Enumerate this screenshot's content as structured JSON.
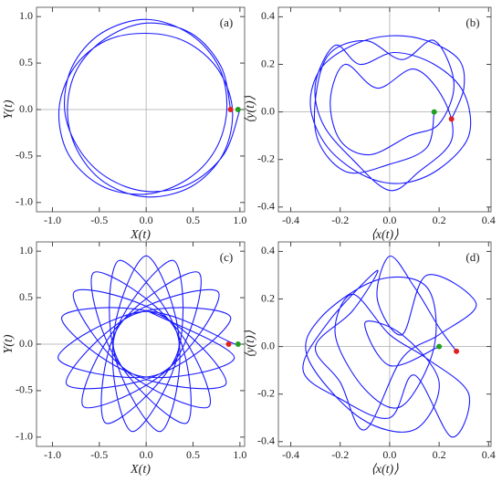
{
  "chart_data": [
    {
      "type": "line",
      "label": "(a)",
      "xlabel": "X(t)",
      "ylabel": "Y(t)",
      "xlim": [
        -1.17,
        1.05
      ],
      "ylim": [
        -1.1,
        1.1
      ],
      "xticks": [
        {
          "value": -1,
          "label": "-1.0"
        },
        -0.5,
        {
          "value": 0,
          "label": "0.0"
        },
        0.5,
        {
          "value": 1,
          "label": "1.0"
        }
      ],
      "yticks": [
        {
          "value": -1,
          "label": "-1.0"
        },
        -0.5,
        {
          "value": 0,
          "label": "0.0"
        },
        0.5,
        {
          "value": 1,
          "label": "1.0"
        }
      ],
      "series": [
        {
          "color": "#1a1aff",
          "style": "line",
          "x": [
            0.9,
            0.8,
            0.48,
            0,
            -0.44,
            -0.74,
            -0.84,
            -0.74,
            -0.45,
            0,
            0.48,
            0.82,
            0.92,
            0.76,
            0.42,
            0,
            -0.43,
            -0.77,
            -0.93,
            -0.83,
            -0.48,
            0,
            0.44,
            0.74,
            0.86,
            0.78,
            0.47,
            0,
            -0.48,
            -0.79,
            -0.87,
            -0.72,
            -0.42,
            0,
            0.46,
            0.83,
            1.0
          ],
          "values": [
            0,
            0.46,
            0.82,
            0.93,
            0.76,
            0.43,
            0,
            -0.43,
            -0.78,
            -0.94,
            -0.83,
            -0.48,
            0,
            0.44,
            0.73,
            0.82,
            0.74,
            0.45,
            0,
            -0.48,
            -0.82,
            -0.91,
            -0.75,
            -0.43,
            0,
            0.45,
            0.81,
            0.97,
            0.82,
            0.46,
            0,
            -0.42,
            -0.73,
            -0.88,
            -0.8,
            -0.48,
            0
          ]
        },
        {
          "color": "#e02020",
          "style": "point",
          "x": [
            0.9
          ],
          "values": [
            0
          ]
        },
        {
          "color": "#20a020",
          "style": "point",
          "x": [
            0.98
          ],
          "values": [
            0
          ]
        }
      ]
    },
    {
      "type": "line",
      "label": "(b)",
      "xlabel": "⟨x(t)⟩",
      "ylabel": "⟨y(t)⟩",
      "xlim": [
        -0.45,
        0.41
      ],
      "ylim": [
        -0.42,
        0.44
      ],
      "xticks": [
        -0.4,
        -0.2,
        {
          "value": 0,
          "label": "0.0"
        },
        0.2,
        0.4
      ],
      "yticks": [
        -0.4,
        -0.2,
        {
          "value": 0,
          "label": "0.0"
        },
        0.2,
        0.4
      ],
      "series": [
        {
          "color": "#1a1aff",
          "style": "line",
          "x": [
            0.25,
            0.3,
            0.28,
            0.15,
            0.0,
            -0.15,
            -0.28,
            -0.32,
            -0.25,
            -0.1,
            0.05,
            0.2,
            0.32,
            0.3,
            0.18,
            0.02,
            -0.12,
            -0.22,
            -0.3,
            -0.27,
            -0.15,
            0.0,
            0.12,
            0.25,
            0.22,
            0.1,
            -0.05,
            -0.18,
            -0.24,
            -0.2,
            -0.08,
            0.08,
            0.2,
            0.26,
            0.18,
            0.05,
            -0.1,
            -0.26,
            -0.3,
            -0.18,
            0.0,
            0.15,
            0.18
          ],
          "values": [
            -0.03,
            0.1,
            0.22,
            0.3,
            0.32,
            0.28,
            0.18,
            0.02,
            -0.15,
            -0.27,
            -0.3,
            -0.24,
            -0.1,
            0.08,
            0.2,
            0.25,
            0.2,
            0.28,
            0.12,
            -0.05,
            -0.2,
            -0.33,
            -0.25,
            -0.12,
            0.05,
            0.18,
            0.1,
            0.2,
            0.05,
            -0.12,
            -0.18,
            -0.1,
            -0.05,
            0.12,
            0.3,
            0.22,
            0.3,
            0.22,
            -0.08,
            -0.25,
            -0.22,
            -0.15,
            0.0
          ]
        },
        {
          "color": "#e02020",
          "style": "point",
          "x": [
            0.25
          ],
          "values": [
            -0.03
          ]
        },
        {
          "color": "#20a020",
          "style": "point",
          "x": [
            0.18
          ],
          "values": [
            0.0
          ]
        }
      ]
    },
    {
      "type": "line",
      "label": "(c)",
      "xlabel": "X(t)",
      "ylabel": "Y(t)",
      "xlim": [
        -1.17,
        1.05
      ],
      "ylim": [
        -1.1,
        1.1
      ],
      "xticks": [
        {
          "value": -1,
          "label": "-1.0"
        },
        -0.5,
        {
          "value": 0,
          "label": "0.0"
        },
        0.5,
        {
          "value": 1,
          "label": "1.0"
        }
      ],
      "yticks": [
        {
          "value": -1,
          "label": "-1.0"
        },
        -0.5,
        {
          "value": 0,
          "label": "0.0"
        },
        0.5,
        {
          "value": 1,
          "label": "1.0"
        }
      ],
      "series": [
        {
          "color": "#1a1aff",
          "style": "line",
          "x": [
            0.95,
            -0.03,
            -0.94,
            0.08,
            0.9,
            -0.13,
            -0.85,
            0.18,
            0.77,
            -0.23,
            -0.67,
            0.27,
            0.56,
            -0.3,
            -0.43,
            0.32,
            0.29,
            -0.34,
            -0.15,
            0.35,
            0,
            -0.35,
            0.15,
            0.34,
            -0.29,
            -0.32,
            0.43,
            0.3,
            -0.56,
            -0.27,
            0.67,
            0.23,
            -0.77,
            -0.18,
            0.85,
            0.13,
            -0.9,
            -0.08,
            0.94,
            0.03
          ],
          "values": [
            0,
            0.35,
            -0.15,
            -0.34,
            0.29,
            0.32,
            -0.43,
            -0.3,
            0.56,
            0.27,
            -0.67,
            -0.23,
            0.77,
            0.18,
            -0.85,
            -0.13,
            0.9,
            0.08,
            -0.94,
            -0.03,
            0.95,
            -0.03,
            -0.94,
            0.08,
            0.9,
            -0.13,
            -0.85,
            0.18,
            0.77,
            -0.23,
            -0.67,
            0.27,
            0.56,
            -0.3,
            -0.43,
            0.32,
            0.29,
            -0.34,
            -0.15,
            0.35
          ]
        },
        {
          "color": "#e02020",
          "style": "point",
          "x": [
            0.88
          ],
          "values": [
            0
          ]
        },
        {
          "color": "#20a020",
          "style": "point",
          "x": [
            0.98
          ],
          "values": [
            0
          ]
        }
      ]
    },
    {
      "type": "line",
      "label": "(d)",
      "xlabel": "⟨x(t)⟩",
      "ylabel": "⟨y(t)⟩",
      "xlim": [
        -0.45,
        0.41
      ],
      "ylim": [
        -0.42,
        0.44
      ],
      "xticks": [
        -0.4,
        -0.2,
        {
          "value": 0,
          "label": "0.0"
        },
        0.2,
        0.4
      ],
      "yticks": [
        -0.4,
        -0.2,
        {
          "value": 0,
          "label": "0.0"
        },
        0.2,
        0.4
      ],
      "series": [
        {
          "color": "#1a1aff",
          "style": "line",
          "x": [
            0.27,
            0.2,
            0.1,
            0.0,
            -0.05,
            0.05,
            0.15,
            0.35,
            0.2,
            0.05,
            -0.1,
            -0.2,
            -0.3,
            -0.15,
            -0.05,
            -0.25,
            -0.35,
            -0.2,
            0.0,
            0.1,
            0.25,
            0.32,
            0.15,
            0.0,
            -0.15,
            -0.22,
            -0.1,
            0.05,
            0.18,
            0.15,
            -0.05,
            -0.28,
            -0.33,
            -0.12,
            0.1,
            0.2,
            0.05,
            -0.1,
            0.0,
            0.2
          ],
          "values": [
            -0.02,
            0.08,
            0.25,
            0.38,
            0.2,
            0.05,
            0.3,
            0.18,
            0.05,
            -0.05,
            -0.35,
            -0.15,
            0.0,
            0.15,
            0.32,
            0.1,
            -0.1,
            -0.22,
            -0.3,
            -0.12,
            -0.38,
            -0.2,
            -0.05,
            0.05,
            0.22,
            0.05,
            -0.18,
            -0.25,
            0.0,
            0.25,
            0.28,
            0.12,
            -0.05,
            -0.3,
            -0.35,
            -0.15,
            0.05,
            0.1,
            -0.08,
            0.0
          ]
        },
        {
          "color": "#e02020",
          "style": "point",
          "x": [
            0.27
          ],
          "values": [
            -0.02
          ]
        },
        {
          "color": "#20a020",
          "style": "point",
          "x": [
            0.2
          ],
          "values": [
            0.0
          ]
        }
      ]
    }
  ]
}
